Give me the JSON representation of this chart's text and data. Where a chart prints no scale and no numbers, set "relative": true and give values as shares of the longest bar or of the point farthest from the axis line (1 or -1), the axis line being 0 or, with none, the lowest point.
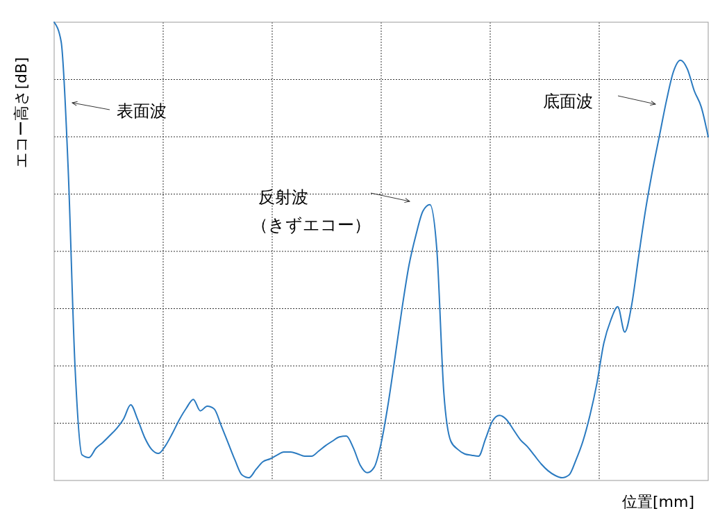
{
  "chart_data": {
    "type": "line",
    "relative": true,
    "xlabel": "位置[mm]",
    "ylabel": "エコー高さ[dB]",
    "grid": true,
    "color": "#2a7ac0",
    "categories": [
      null,
      null,
      null,
      null,
      null,
      null,
      null,
      null,
      null,
      null,
      null,
      null,
      null,
      null,
      null,
      null,
      null,
      null,
      null,
      null,
      null,
      null,
      null,
      null,
      null,
      null,
      null,
      null,
      null,
      null,
      null,
      null,
      null,
      null,
      null,
      null,
      null,
      null,
      null,
      null,
      null,
      null,
      null,
      null,
      null,
      null,
      null,
      null,
      null,
      null,
      null,
      null,
      null,
      null,
      null,
      null,
      null,
      null,
      null,
      null,
      null,
      null,
      null,
      null,
      null,
      null,
      null,
      null,
      null,
      null,
      null,
      null,
      null,
      null,
      null,
      null,
      null,
      null,
      null,
      null,
      null,
      null,
      null,
      null,
      null,
      null,
      null,
      null,
      null,
      null,
      null,
      null,
      null,
      null,
      null
    ],
    "values": [
      1.0,
      0.958,
      0.685,
      0.248,
      0.056,
      0.05,
      0.07,
      0.083,
      0.098,
      0.114,
      0.135,
      0.165,
      0.133,
      0.094,
      0.068,
      0.059,
      0.076,
      0.103,
      0.133,
      0.158,
      0.177,
      0.152,
      0.162,
      0.156,
      0.12,
      0.082,
      0.044,
      0.012,
      0.006,
      0.024,
      0.041,
      0.047,
      0.055,
      0.062,
      0.062,
      0.058,
      0.053,
      0.053,
      0.064,
      0.076,
      0.086,
      0.095,
      0.097,
      0.071,
      0.033,
      0.017,
      0.029,
      0.082,
      0.167,
      0.27,
      0.376,
      0.47,
      0.536,
      0.588,
      0.602,
      0.503,
      0.192,
      0.086,
      0.068,
      0.058,
      0.055,
      0.053,
      0.091,
      0.13,
      0.142,
      0.133,
      0.111,
      0.089,
      0.074,
      0.055,
      0.036,
      0.021,
      0.011,
      0.006,
      0.012,
      0.045,
      0.086,
      0.142,
      0.212,
      0.3,
      0.35,
      0.379,
      0.324,
      0.383,
      0.489,
      0.591,
      0.677,
      0.753,
      0.829,
      0.892,
      0.917,
      0.898,
      0.85,
      0.815,
      0.75
    ],
    "annotations": [
      "表面波",
      "反射波",
      "（きずエコー）",
      "底面波"
    ]
  }
}
